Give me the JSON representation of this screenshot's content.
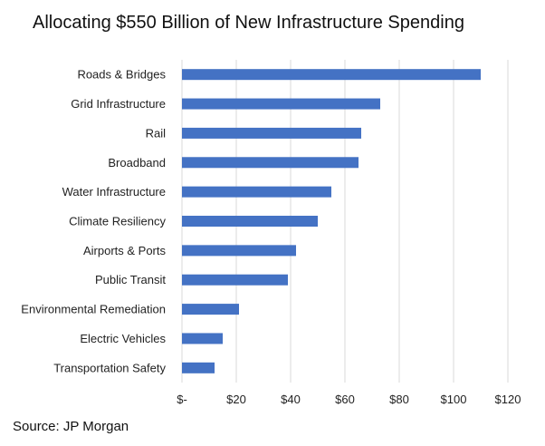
{
  "chart_data": {
    "type": "bar",
    "orientation": "horizontal",
    "title": "Allocating $550 Billion of New Infrastructure Spending",
    "source": "Source: JP Morgan",
    "categories": [
      "Roads & Bridges",
      "Grid Infrastructure",
      "Rail",
      "Broadband",
      "Water Infrastructure",
      "Climate Resiliency",
      "Airports & Ports",
      "Public Transit",
      "Environmental Remediation",
      "Electric Vehicles",
      "Transportation Safety"
    ],
    "values": [
      110,
      73,
      66,
      65,
      55,
      50,
      42,
      39,
      21,
      15,
      12
    ],
    "xlim": [
      0,
      120
    ],
    "x_ticks": [
      0,
      20,
      40,
      60,
      80,
      100,
      120
    ],
    "x_tick_labels": [
      "$-",
      "$20",
      "$40",
      "$60",
      "$80",
      "$100",
      "$120"
    ],
    "grid": "vertical",
    "bar_color": "#4472C4",
    "grid_color": "#d9d9d9"
  }
}
